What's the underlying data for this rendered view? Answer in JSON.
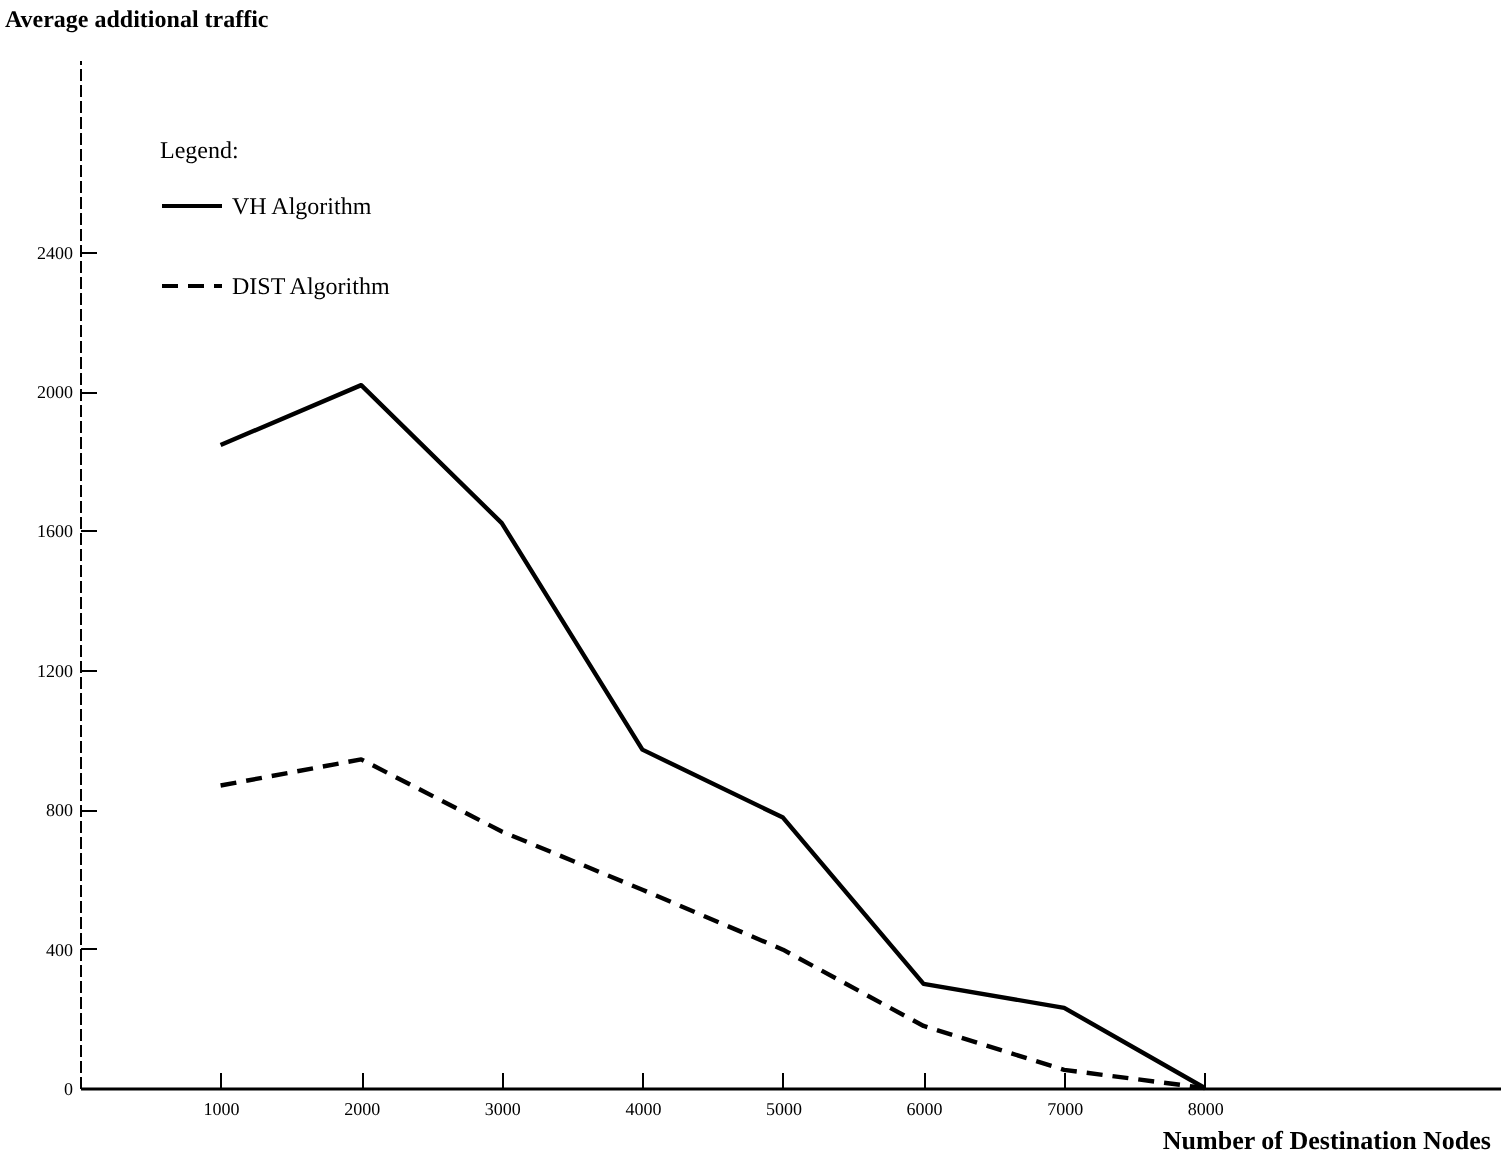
{
  "chart_data": {
    "type": "line",
    "xlabel": "Number of Destination Nodes",
    "ylabel": "Average additional traffic",
    "legend_title": "Legend:",
    "legend": "top left",
    "grid": false,
    "marker": "none",
    "x": [
      1000,
      2000,
      3000,
      4000,
      5000,
      6000,
      7000,
      8000
    ],
    "xlim": [
      0,
      10100
    ],
    "xticks": [
      1000,
      2000,
      3000,
      4000,
      5000,
      6000,
      7000,
      8000
    ],
    "ylim": [
      0,
      2950
    ],
    "yticks": [
      0,
      400,
      800,
      1200,
      1600,
      2000,
      2400
    ],
    "series": [
      {
        "name": "VH Algorithm",
        "color": "#000000",
        "line_style": "solid",
        "values": [
          1845,
          2017,
          1621,
          971,
          776,
          299,
          230,
          0
        ]
      },
      {
        "name": "DIST Algorithm",
        "color": "#000000",
        "line_style": "dashed",
        "values": [
          868,
          943,
          736,
          569,
          397,
          178,
          52,
          0
        ]
      }
    ]
  }
}
